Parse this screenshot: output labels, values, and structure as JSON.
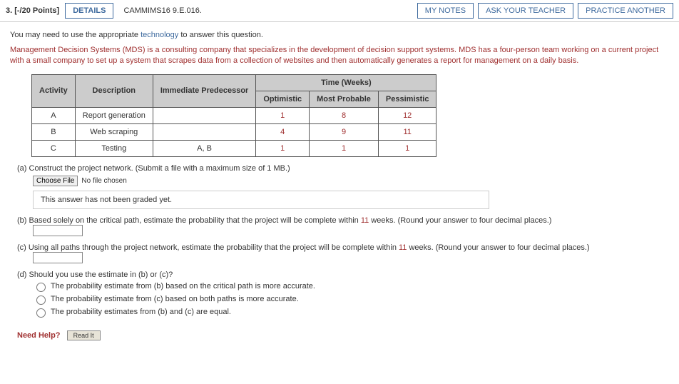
{
  "header": {
    "points": "3. [-/20 Points]",
    "details": "DETAILS",
    "code": "CAMMIMS16 9.E.016.",
    "mynotes": "MY NOTES",
    "ask": "ASK YOUR TEACHER",
    "practice": "PRACTICE ANOTHER"
  },
  "intro_pre": "You may need to use the appropriate ",
  "intro_link": "technology",
  "intro_post": " to answer this question.",
  "desc": "Management Decision Systems (MDS) is a consulting company that specializes in the development of decision support systems. MDS has a four-person team working on a current project with a small company to set up a system that scrapes data from a collection of websites and then automatically generates a report for management on a daily basis.",
  "table": {
    "time_header": "Time (Weeks)",
    "cols": [
      "Activity",
      "Description",
      "Immediate Predecessor",
      "Optimistic",
      "Most Probable",
      "Pessimistic"
    ],
    "rows": [
      [
        "A",
        "Report generation",
        "",
        "1",
        "8",
        "12"
      ],
      [
        "B",
        "Web scraping",
        "",
        "4",
        "9",
        "11"
      ],
      [
        "C",
        "Testing",
        "A, B",
        "1",
        "1",
        "1"
      ]
    ]
  },
  "parts": {
    "a_label": "(a)",
    "a_text": "Construct the project network. (Submit a file with a maximum size of 1 MB.)",
    "choose_file": "Choose File",
    "no_file": "No file chosen",
    "nograde": "This answer has not been graded yet.",
    "b_label": "(b)",
    "b_pre": "Based solely on the critical path, estimate the probability that the project will be complete within ",
    "b_num": "11",
    "b_post": " weeks. (Round your answer to four decimal places.)",
    "c_label": "(c)",
    "c_pre": "Using all paths through the project network, estimate the probability that the project will be complete within ",
    "c_num": "11",
    "c_post": " weeks. (Round your answer to four decimal places.)",
    "d_label": "(d)",
    "d_text": "Should you use the estimate in (b) or (c)?",
    "d_opt1": "The probability estimate from (b) based on the critical path is more accurate.",
    "d_opt2": "The probability estimate from (c) based on both paths is more accurate.",
    "d_opt3": "The probability estimates from (b) and (c) are equal."
  },
  "help": {
    "label": "Need Help?",
    "read": "Read It"
  }
}
